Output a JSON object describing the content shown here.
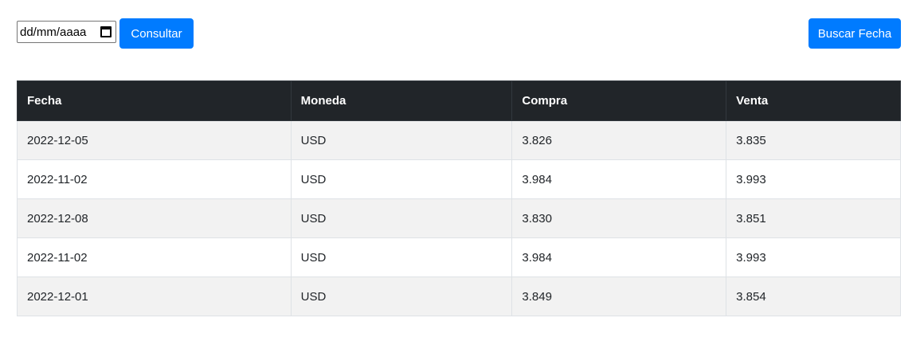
{
  "toolbar": {
    "date_placeholder": "dd/mm/aaaa",
    "calendar_icon": "calendar-icon",
    "consultar_label": "Consultar",
    "buscar_label": "Buscar Fecha",
    "accent_color": "#007bff"
  },
  "table": {
    "header_color": "#212529",
    "columns": [
      "Fecha",
      "Moneda",
      "Compra",
      "Venta"
    ],
    "rows": [
      [
        "2022-12-05",
        "USD",
        "3.826",
        "3.835"
      ],
      [
        "2022-11-02",
        "USD",
        "3.984",
        "3.993"
      ],
      [
        "2022-12-08",
        "USD",
        "3.830",
        "3.851"
      ],
      [
        "2022-11-02",
        "USD",
        "3.984",
        "3.993"
      ],
      [
        "2022-12-01",
        "USD",
        "3.849",
        "3.854"
      ]
    ]
  }
}
